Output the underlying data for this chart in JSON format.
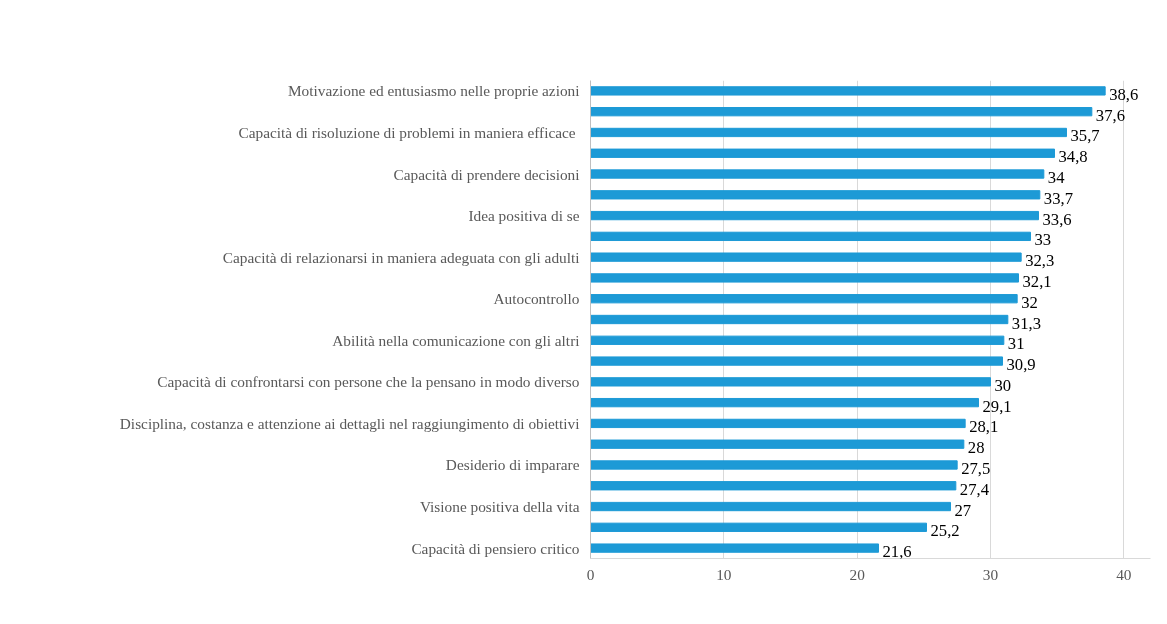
{
  "chart_data": {
    "type": "bar",
    "orientation": "horizontal",
    "categories": [
      "Motivazione ed entusiasmo nelle proprie azioni",
      null,
      "Capacità di  risoluzione di problemi in maniera efficace",
      null,
      "Capacità di prendere decisioni",
      null,
      "Idea positiva di se",
      null,
      "Capacità di relazionarsi in maniera adeguata con gli adulti",
      null,
      "Autocontrollo",
      null,
      "Abilità nella comunicazione con gli altri",
      null,
      "Capacità di confrontarsi con persone che la pensano in modo diverso",
      null,
      "Disciplina, costanza e attenzione ai dettagli nel raggiungimento di obiettivi",
      null,
      "Desiderio di imparare",
      null,
      "Visione positiva della vita",
      null,
      "Capacità di pensiero critico"
    ],
    "values": [
      38.6,
      37.6,
      35.7,
      34.8,
      34,
      33.7,
      33.6,
      33,
      32.3,
      32.1,
      32,
      31.3,
      31,
      30.9,
      30,
      29.1,
      28.1,
      28,
      27.5,
      27.4,
      27,
      25.2,
      21.6
    ],
    "color": "#1d9ad6",
    "value_labels": [
      "38,6",
      "37,6",
      "35,7",
      "34,8",
      "34",
      "33,7",
      "33,6",
      "33",
      "32,3",
      "32,1",
      "32",
      "31,3",
      "31",
      "30,9",
      "30",
      "29,1",
      "28,1",
      "28",
      "27,5",
      "27,4",
      "27",
      "25,2",
      "21,6"
    ],
    "xlim": [
      0,
      42
    ],
    "xticks": [
      0,
      10,
      20,
      30,
      40
    ],
    "grid": "x"
  }
}
